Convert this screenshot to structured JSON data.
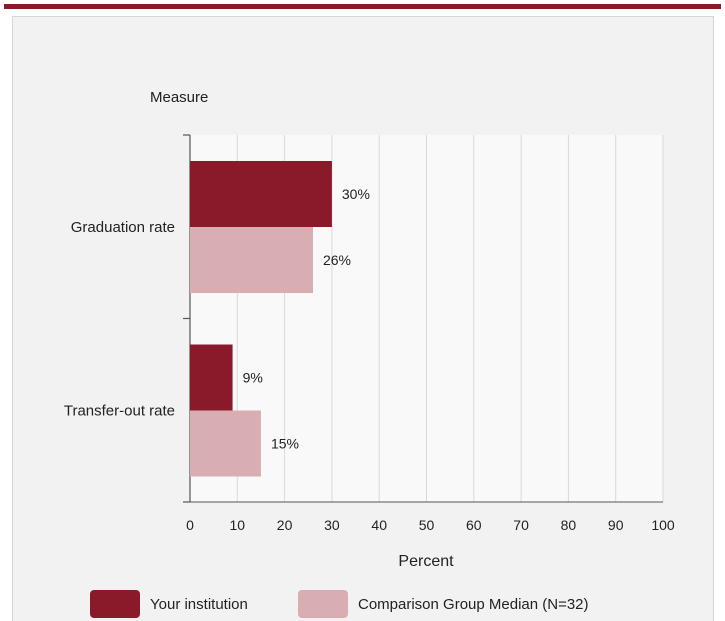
{
  "chart_data": {
    "type": "bar",
    "orientation": "horizontal",
    "y_axis_title": "Measure",
    "xlabel": "Percent",
    "categories": [
      "Graduation rate",
      "Transfer-out rate"
    ],
    "series": [
      {
        "name": "Your institution",
        "color": "#8a1a2a",
        "values": [
          30,
          9
        ],
        "labels": [
          "30%",
          "9%"
        ]
      },
      {
        "name": "Comparison Group Median (N=32)",
        "color": "#d8aeb3",
        "values": [
          26,
          15
        ],
        "labels": [
          "26%",
          "15%"
        ]
      }
    ],
    "xlim": [
      0,
      100
    ],
    "x_ticks": [
      0,
      10,
      20,
      30,
      40,
      50,
      60,
      70,
      80,
      90,
      100
    ],
    "grid": true,
    "legend_position": "bottom"
  }
}
